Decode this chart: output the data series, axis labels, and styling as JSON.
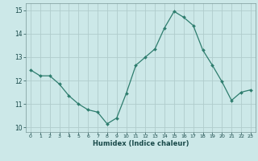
{
  "x": [
    0,
    1,
    2,
    3,
    4,
    5,
    6,
    7,
    8,
    9,
    10,
    11,
    12,
    13,
    14,
    15,
    16,
    17,
    18,
    19,
    20,
    21,
    22,
    23
  ],
  "y": [
    12.45,
    12.2,
    12.2,
    11.85,
    11.35,
    11.0,
    10.75,
    10.65,
    10.15,
    10.4,
    11.45,
    12.65,
    13.0,
    13.35,
    14.25,
    14.95,
    14.7,
    14.35,
    13.3,
    12.65,
    11.95,
    11.15,
    11.5,
    11.6
  ],
  "xlabel": "Humidex (Indice chaleur)",
  "xlim_left": -0.5,
  "xlim_right": 23.5,
  "ylim": [
    9.8,
    15.3
  ],
  "yticks": [
    10,
    11,
    12,
    13,
    14,
    15
  ],
  "xticks": [
    0,
    1,
    2,
    3,
    4,
    5,
    6,
    7,
    8,
    9,
    10,
    11,
    12,
    13,
    14,
    15,
    16,
    17,
    18,
    19,
    20,
    21,
    22,
    23
  ],
  "line_color": "#2e7d6e",
  "marker": "D",
  "marker_size": 2.0,
  "bg_color": "#cce8e8",
  "grid_color": "#b0cccc",
  "tick_label_color": "#1a4a4a",
  "xlabel_color": "#1a4a4a",
  "axis_color": "#7a9898"
}
